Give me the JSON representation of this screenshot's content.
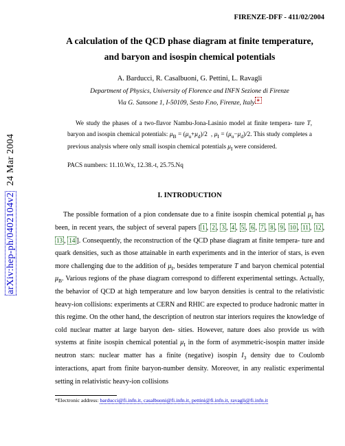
{
  "arxiv": {
    "id": "arXiv:hep-ph/0402104v2",
    "date": "24 Mar 2004"
  },
  "header": {
    "report": "FIRENZE-DFF - 411/02/2004"
  },
  "title": {
    "line1": "A calculation of the QCD phase diagram at finite temperature,",
    "line2": "and baryon and isospin chemical potentials"
  },
  "authors": "A. Barducci, R. Casalbuoni, G. Pettini, L. Ravagli",
  "affiliation": {
    "line1": "Department of Physics, University of Florence and INFN Sezione di Firenze",
    "line2": "Via G. Sansone 1, I-50109, Sesto F.no, Firenze, Italy"
  },
  "abstract": {
    "l1": "We study the phases of a two-flavor Nambu-Jona-Lasinio model at finite tempera-",
    "l2a": "ture ",
    "l2b": ", baryon and isospin chemical potentials: ",
    "l3": "This study completes a previous analysis where only small isospin chemical potentials",
    "l4": " were considered."
  },
  "pacs": "PACS numbers:  11.10.Wx, 12.38.-t, 25.75.Nq",
  "section": "I.    INTRODUCTION",
  "body": {
    "p1a": "The possible formation of a pion condensate due to a finite isospin chemical potential ",
    "p1b": " has been, in recent years, the subject of several papers ",
    "p1c": ". Consequently, the reconstruction of the QCD phase diagram at finite tempera-",
    "p1d": "ture and quark densities, such as those attainable in earth experiments and in the interior",
    "p1e": "of stars, is even more challenging due to the addition of ",
    "p1f": ",  besides temperature ",
    "p1g": " and",
    "p1h": "baryon chemical potential ",
    "p1i": ".  Various regions of the phase diagram correspond to different",
    "p1j": "experimental settings. Actually, the behavior of QCD at high temperature and low baryon",
    "p1k": "densities is central to the relativistic heavy-ion collisions: experiments at CERN and RHIC",
    "p1l": "are expected to produce hadronic matter in this regime. On the other hand, the description",
    "p1m": "of neutron star interiors requires the knowledge of cold nuclear matter at large baryon den-",
    "p1n": "sities. However, nature does also provide us with systems at finite isospin chemical potential",
    "p1o": " in the form of asymmetric-isospin matter inside neutron stars: nuclear matter has a finite",
    "p1p": "(negative) isospin ",
    "p1q": " density due to Coulomb interactions, apart from finite baryon-number",
    "p1r": "density.  Moreover, in any realistic experimental setting in relativistic heavy-ion collisions"
  },
  "cites": [
    "1",
    "2",
    "3",
    "4",
    "5",
    "6",
    "7",
    "8",
    "9",
    "10",
    "11",
    "12",
    "13",
    "14"
  ],
  "footnote": {
    "label": "*Electronic address: ",
    "emails": "barducci@fi.infn.it, casalbuoni@fi.infn.it, pettini@fi.infn.it, ravagli@fi.infn.it"
  },
  "style": {
    "page_bg": "#ffffff",
    "text_color": "#000000",
    "link_color": "#0000cc",
    "cite_color": "#005a00",
    "ref_color": "#aa0000",
    "title_fontsize": 13.5,
    "body_fontsize": 10,
    "abstract_fontsize": 9.2,
    "font_family": "Times New Roman"
  }
}
